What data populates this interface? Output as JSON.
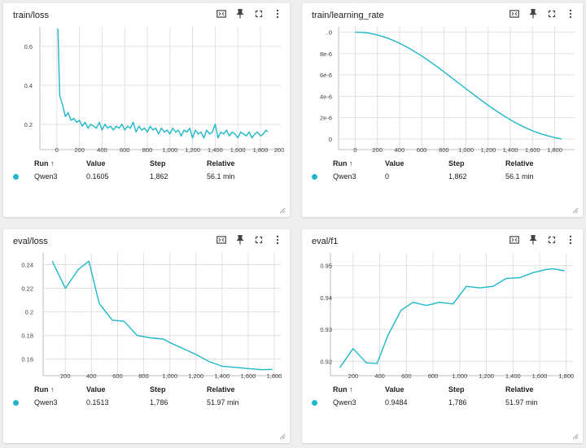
{
  "accent_color": "#1fb7c9",
  "panels": [
    {
      "title": "train/loss",
      "run": {
        "header_run": "Run ↑",
        "header_value": "Value",
        "header_step": "Step",
        "header_relative": "Relative",
        "name": "Qwen3",
        "value": "0.1605",
        "step": "1,862",
        "relative": "56.1 min"
      }
    },
    {
      "title": "train/learning_rate",
      "run": {
        "header_run": "Run ↑",
        "header_value": "Value",
        "header_step": "Step",
        "header_relative": "Relative",
        "name": "Qwen3",
        "value": "0",
        "step": "1,862",
        "relative": "56.1 min"
      }
    },
    {
      "title": "eval/loss",
      "run": {
        "header_run": "Run ↑",
        "header_value": "Value",
        "header_step": "Step",
        "header_relative": "Relative",
        "name": "Qwen3",
        "value": "0.1513",
        "step": "1,786",
        "relative": "51.97 min"
      }
    },
    {
      "title": "eval/f1",
      "run": {
        "header_run": "Run ↑",
        "header_value": "Value",
        "header_step": "Step",
        "header_relative": "Relative",
        "name": "Qwen3",
        "value": "0.9484",
        "step": "1,786",
        "relative": "51.97 min"
      }
    }
  ],
  "icons": [
    "fit-domain-icon",
    "pin-icon",
    "fullscreen-icon",
    "more-vert-icon",
    "resize-handle-icon"
  ],
  "chart_data": [
    {
      "type": "line",
      "title": "train/loss",
      "xlim": [
        -150,
        1980
      ],
      "ylim": [
        0.07,
        0.7
      ],
      "x_ticks": [
        0,
        200,
        400,
        600,
        800,
        1000,
        1200,
        1400,
        1600,
        1800
      ],
      "x_tick_labels": [
        "0",
        "200",
        "400",
        "600",
        "800",
        "1,000",
        "1,200",
        "1,400",
        "1,600",
        "1,800"
      ],
      "x_edge_label": "200",
      "y_ticks": [
        0.2,
        0.4,
        0.6
      ],
      "y_tick_labels": [
        "0.2",
        "0.4",
        "0.6"
      ],
      "series": [
        {
          "x": [
            10,
            25,
            50,
            75,
            100,
            125,
            150,
            175,
            200,
            225,
            250,
            275,
            300,
            325,
            350,
            375,
            400,
            425,
            450,
            475,
            500,
            525,
            550,
            575,
            600,
            625,
            650,
            675,
            700,
            725,
            750,
            775,
            800,
            825,
            850,
            875,
            900,
            925,
            950,
            975,
            1000,
            1025,
            1050,
            1075,
            1100,
            1125,
            1150,
            1175,
            1200,
            1225,
            1250,
            1275,
            1300,
            1325,
            1350,
            1375,
            1400,
            1425,
            1450,
            1475,
            1500,
            1525,
            1550,
            1575,
            1600,
            1625,
            1650,
            1675,
            1700,
            1725,
            1750,
            1775,
            1800,
            1825,
            1850,
            1862
          ],
          "y": [
            0.69,
            0.35,
            0.3,
            0.24,
            0.26,
            0.22,
            0.23,
            0.21,
            0.22,
            0.19,
            0.21,
            0.18,
            0.2,
            0.19,
            0.18,
            0.21,
            0.17,
            0.2,
            0.18,
            0.19,
            0.17,
            0.19,
            0.18,
            0.2,
            0.17,
            0.19,
            0.18,
            0.21,
            0.16,
            0.19,
            0.17,
            0.18,
            0.16,
            0.19,
            0.17,
            0.18,
            0.15,
            0.18,
            0.16,
            0.17,
            0.15,
            0.18,
            0.16,
            0.17,
            0.14,
            0.17,
            0.16,
            0.18,
            0.13,
            0.17,
            0.15,
            0.16,
            0.13,
            0.17,
            0.15,
            0.16,
            0.2,
            0.13,
            0.16,
            0.15,
            0.17,
            0.14,
            0.16,
            0.15,
            0.13,
            0.16,
            0.15,
            0.14,
            0.16,
            0.13,
            0.15,
            0.16,
            0.14,
            0.15,
            0.17,
            0.1605
          ]
        }
      ]
    },
    {
      "type": "line",
      "title": "train/learning_rate",
      "xlim": [
        -150,
        1980
      ],
      "ylim": [
        -1e-06,
        1.05e-05
      ],
      "x_ticks": [
        0,
        200,
        400,
        600,
        800,
        1000,
        1200,
        1400,
        1600,
        1800
      ],
      "x_tick_labels": [
        "0",
        "200",
        "400",
        "600",
        "800",
        "1,000",
        "1,200",
        "1,400",
        "1,600",
        "1,800"
      ],
      "y_ticks": [
        0,
        2e-06,
        4e-06,
        6e-06,
        8e-06,
        1e-05
      ],
      "y_tick_labels": [
        "0",
        "2e-6",
        "4e-6",
        "6e-6",
        "8e-6",
        "..0"
      ],
      "series": [
        {
          "x": [
            0,
            60,
            120,
            180,
            240,
            300,
            360,
            420,
            480,
            540,
            600,
            660,
            720,
            780,
            840,
            900,
            960,
            1020,
            1080,
            1140,
            1200,
            1260,
            1320,
            1380,
            1440,
            1500,
            1560,
            1620,
            1680,
            1740,
            1800,
            1862
          ],
          "y": [
            1e-05,
            9.98e-06,
            9.91e-06,
            9.79e-06,
            9.62e-06,
            9.41e-06,
            9.16e-06,
            8.86e-06,
            8.53e-06,
            8.16e-06,
            7.77e-06,
            7.35e-06,
            6.91e-06,
            6.45e-06,
            5.98e-06,
            5.5e-06,
            5.02e-06,
            4.54e-06,
            4.07e-06,
            3.6e-06,
            3.15e-06,
            2.72e-06,
            2.31e-06,
            1.92e-06,
            1.56e-06,
            1.23e-06,
            9.4e-07,
            6.8e-07,
            4.6e-07,
            2.8e-07,
            1.3e-07,
            0
          ]
        }
      ]
    },
    {
      "type": "line",
      "title": "eval/loss",
      "xlim": [
        30,
        1850
      ],
      "ylim": [
        0.146,
        0.25
      ],
      "x_ticks": [
        200,
        400,
        600,
        800,
        1000,
        1200,
        1400,
        1600,
        1800
      ],
      "x_tick_labels": [
        "200",
        "400",
        "600",
        "800",
        "1,000",
        "1,200",
        "1,400",
        "1,600",
        "1,800"
      ],
      "y_ticks": [
        0.16,
        0.18,
        0.2,
        0.22,
        0.24
      ],
      "y_tick_labels": [
        "0.16",
        "0.18",
        "0.2",
        "0.22",
        "0.24"
      ],
      "series": [
        {
          "x": [
            100,
            200,
            300,
            380,
            460,
            560,
            650,
            750,
            850,
            950,
            1000,
            1100,
            1200,
            1300,
            1400,
            1500,
            1600,
            1700,
            1786
          ],
          "y": [
            0.243,
            0.22,
            0.236,
            0.243,
            0.207,
            0.193,
            0.192,
            0.18,
            0.178,
            0.177,
            0.174,
            0.169,
            0.164,
            0.158,
            0.154,
            0.153,
            0.152,
            0.151,
            0.1513
          ]
        }
      ]
    },
    {
      "type": "line",
      "title": "eval/f1",
      "xlim": [
        30,
        1850
      ],
      "ylim": [
        0.9155,
        0.954
      ],
      "x_ticks": [
        200,
        400,
        600,
        800,
        1000,
        1200,
        1400,
        1600,
        1800
      ],
      "x_tick_labels": [
        "200",
        "400",
        "600",
        "800",
        "1,000",
        "1,200",
        "1,400",
        "1,600",
        "1,800"
      ],
      "y_ticks": [
        0.92,
        0.93,
        0.94,
        0.95
      ],
      "y_tick_labels": [
        "0.92",
        "0.93",
        "0.94",
        "0.95"
      ],
      "series": [
        {
          "x": [
            100,
            200,
            300,
            380,
            460,
            560,
            650,
            750,
            850,
            950,
            1050,
            1150,
            1250,
            1350,
            1450,
            1550,
            1650,
            1700,
            1786
          ],
          "y": [
            0.918,
            0.924,
            0.9195,
            0.9193,
            0.928,
            0.936,
            0.9385,
            0.9375,
            0.9385,
            0.938,
            0.9435,
            0.943,
            0.9435,
            0.946,
            0.9462,
            0.9478,
            0.9488,
            0.949,
            0.9484
          ]
        }
      ]
    }
  ]
}
